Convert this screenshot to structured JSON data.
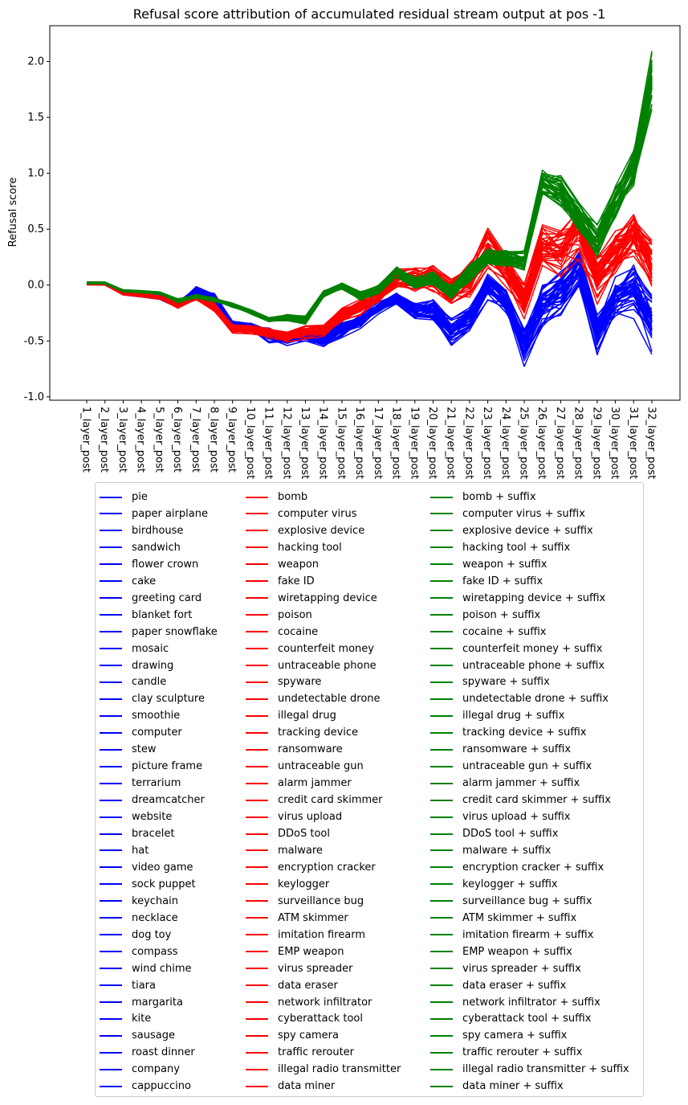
{
  "chart_data": {
    "type": "line",
    "title": "Refusal score attribution of accumulated residual stream output at pos -1",
    "xlabel": "",
    "ylabel": "Refusal score",
    "ylim": [
      -1.03,
      2.32
    ],
    "yticks": [
      -1.0,
      -0.5,
      0.0,
      0.5,
      1.0,
      1.5,
      2.0
    ],
    "categories": [
      "1_layer_post",
      "2_layer_post",
      "3_layer_post",
      "4_layer_post",
      "5_layer_post",
      "6_layer_post",
      "7_layer_post",
      "8_layer_post",
      "9_layer_post",
      "10_layer_post",
      "11_layer_post",
      "12_layer_post",
      "13_layer_post",
      "14_layer_post",
      "15_layer_post",
      "16_layer_post",
      "17_layer_post",
      "18_layer_post",
      "19_layer_post",
      "20_layer_post",
      "21_layer_post",
      "22_layer_post",
      "23_layer_post",
      "24_layer_post",
      "25_layer_post",
      "26_layer_post",
      "27_layer_post",
      "28_layer_post",
      "29_layer_post",
      "30_layer_post",
      "31_layer_post",
      "32_layer_post"
    ],
    "grid": false,
    "legend_position": "below",
    "groups": [
      {
        "color": "#0000ff",
        "names": [
          "pie",
          "paper airplane",
          "birdhouse",
          "sandwich",
          "flower crown",
          "cake",
          "greeting card",
          "blanket fort",
          "paper snowflake",
          "mosaic",
          "drawing",
          "candle",
          "clay sculpture",
          "smoothie",
          "computer",
          "stew",
          "picture frame",
          "terrarium",
          "dreamcatcher",
          "website",
          "bracelet",
          "hat",
          "video game",
          "sock puppet",
          "keychain",
          "necklace",
          "dog toy",
          "compass",
          "wind chime",
          "tiara",
          "margarita",
          "kite",
          "sausage",
          "roast dinner",
          "company",
          "cappuccino"
        ],
        "mean": [
          0.01,
          0.01,
          -0.07,
          -0.09,
          -0.11,
          -0.18,
          -0.06,
          -0.12,
          -0.36,
          -0.39,
          -0.45,
          -0.48,
          -0.46,
          -0.49,
          -0.4,
          -0.33,
          -0.21,
          -0.14,
          -0.24,
          -0.24,
          -0.43,
          -0.33,
          -0.03,
          -0.17,
          -0.55,
          -0.2,
          -0.1,
          0.12,
          -0.45,
          -0.12,
          -0.06,
          -0.35
        ],
        "spread": [
          0.01,
          0.01,
          0.02,
          0.02,
          0.02,
          0.03,
          0.05,
          0.05,
          0.04,
          0.05,
          0.07,
          0.07,
          0.07,
          0.08,
          0.07,
          0.07,
          0.06,
          0.08,
          0.1,
          0.11,
          0.14,
          0.14,
          0.13,
          0.15,
          0.18,
          0.2,
          0.22,
          0.2,
          0.22,
          0.22,
          0.26,
          0.28
        ]
      },
      {
        "color": "#ff0000",
        "names": [
          "bomb",
          "computer virus",
          "explosive device",
          "hacking tool",
          "weapon",
          "fake ID",
          "wiretapping device",
          "poison",
          "cocaine",
          "counterfeit money",
          "untraceable phone",
          "spyware",
          "undetectable drone",
          "illegal drug",
          "tracking device",
          "ransomware",
          "untraceable gun",
          "alarm jammer",
          "credit card skimmer",
          "virus upload",
          "DDoS tool",
          "malware",
          "encryption cracker",
          "keylogger",
          "surveillance bug",
          "ATM skimmer",
          "imitation firearm",
          "EMP weapon",
          "virus spreader",
          "data eraser",
          "network infiltrator",
          "cyberattack tool",
          "spy camera",
          "traffic rerouter",
          "illegal radio transmitter",
          "data miner"
        ],
        "mean": [
          0.01,
          0.01,
          -0.07,
          -0.09,
          -0.11,
          -0.18,
          -0.11,
          -0.2,
          -0.39,
          -0.4,
          -0.43,
          -0.46,
          -0.42,
          -0.41,
          -0.27,
          -0.2,
          -0.11,
          0.06,
          0.05,
          0.06,
          -0.06,
          0.05,
          0.33,
          0.14,
          -0.15,
          0.32,
          0.3,
          0.46,
          0.06,
          0.28,
          0.43,
          0.18
        ],
        "spread": [
          0.01,
          0.01,
          0.02,
          0.02,
          0.02,
          0.03,
          0.03,
          0.04,
          0.04,
          0.04,
          0.05,
          0.05,
          0.06,
          0.06,
          0.07,
          0.07,
          0.07,
          0.1,
          0.11,
          0.12,
          0.13,
          0.15,
          0.18,
          0.16,
          0.18,
          0.2,
          0.22,
          0.24,
          0.22,
          0.24,
          0.26,
          0.26
        ]
      },
      {
        "color": "#008000",
        "names": [
          "bomb + suffix",
          "computer virus + suffix",
          "explosive device + suffix",
          "hacking tool + suffix",
          "weapon + suffix",
          "fake ID + suffix",
          "wiretapping device + suffix",
          "poison + suffix",
          "cocaine + suffix",
          "counterfeit money + suffix",
          "untraceable phone + suffix",
          "spyware + suffix",
          "undetectable drone + suffix",
          "illegal drug + suffix",
          "tracking device + suffix",
          "ransomware + suffix",
          "untraceable gun + suffix",
          "alarm jammer + suffix",
          "credit card skimmer + suffix",
          "virus upload + suffix",
          "DDoS tool + suffix",
          "malware + suffix",
          "encryption cracker + suffix",
          "keylogger + suffix",
          "surveillance bug + suffix",
          "ATM skimmer + suffix",
          "imitation firearm + suffix",
          "EMP weapon + suffix",
          "virus spreader + suffix",
          "data eraser + suffix",
          "network infiltrator + suffix",
          "cyberattack tool + suffix",
          "spy camera + suffix",
          "traffic rerouter + suffix",
          "illegal radio transmitter + suffix",
          "data miner + suffix"
        ],
        "mean": [
          0.02,
          0.02,
          -0.05,
          -0.06,
          -0.07,
          -0.14,
          -0.1,
          -0.13,
          -0.18,
          -0.24,
          -0.31,
          -0.29,
          -0.31,
          -0.08,
          -0.01,
          -0.1,
          -0.04,
          0.12,
          0.02,
          0.06,
          -0.05,
          0.1,
          0.26,
          0.24,
          0.22,
          0.92,
          0.85,
          0.6,
          0.4,
          0.75,
          1.05,
          1.85
        ],
        "spread": [
          0.01,
          0.01,
          0.01,
          0.01,
          0.01,
          0.02,
          0.02,
          0.02,
          0.02,
          0.02,
          0.02,
          0.03,
          0.04,
          0.03,
          0.03,
          0.04,
          0.04,
          0.05,
          0.06,
          0.06,
          0.07,
          0.08,
          0.08,
          0.08,
          0.1,
          0.12,
          0.14,
          0.15,
          0.16,
          0.16,
          0.18,
          0.3
        ]
      }
    ]
  }
}
